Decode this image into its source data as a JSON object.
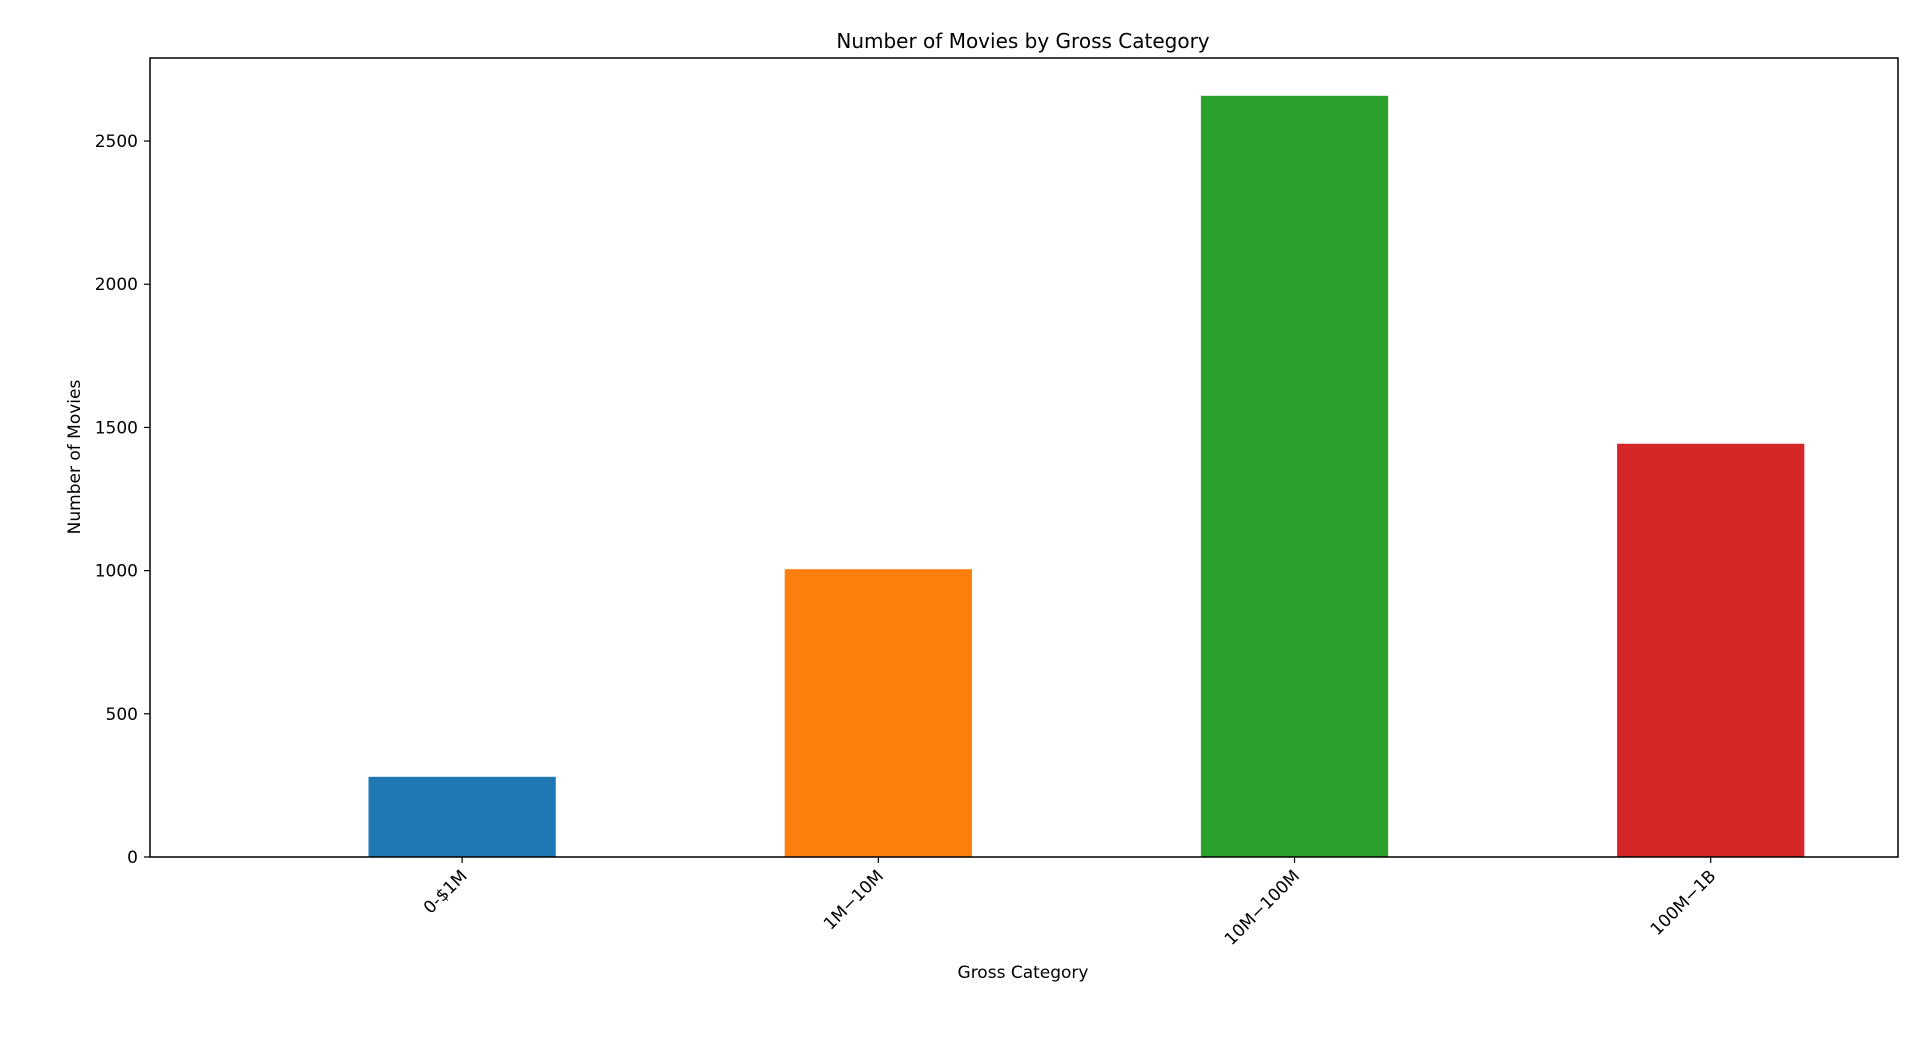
{
  "chart_data": {
    "type": "bar",
    "title": "Number of Movies by Gross Category",
    "xlabel": "Gross Category",
    "ylabel": "Number of Movies",
    "categories": [
      "0-$1M",
      "1M−10M",
      "10M−100M",
      "100M−1B"
    ],
    "values": [
      280,
      1005,
      2658,
      1443
    ],
    "colors": [
      "#1f77b4",
      "#ff7f0e",
      "#2ca02c",
      "#d62728"
    ],
    "ylim": [
      0,
      2790
    ],
    "yticks": [
      0,
      500,
      1000,
      1500,
      2000,
      2500
    ],
    "grid": false,
    "legend": "none"
  }
}
